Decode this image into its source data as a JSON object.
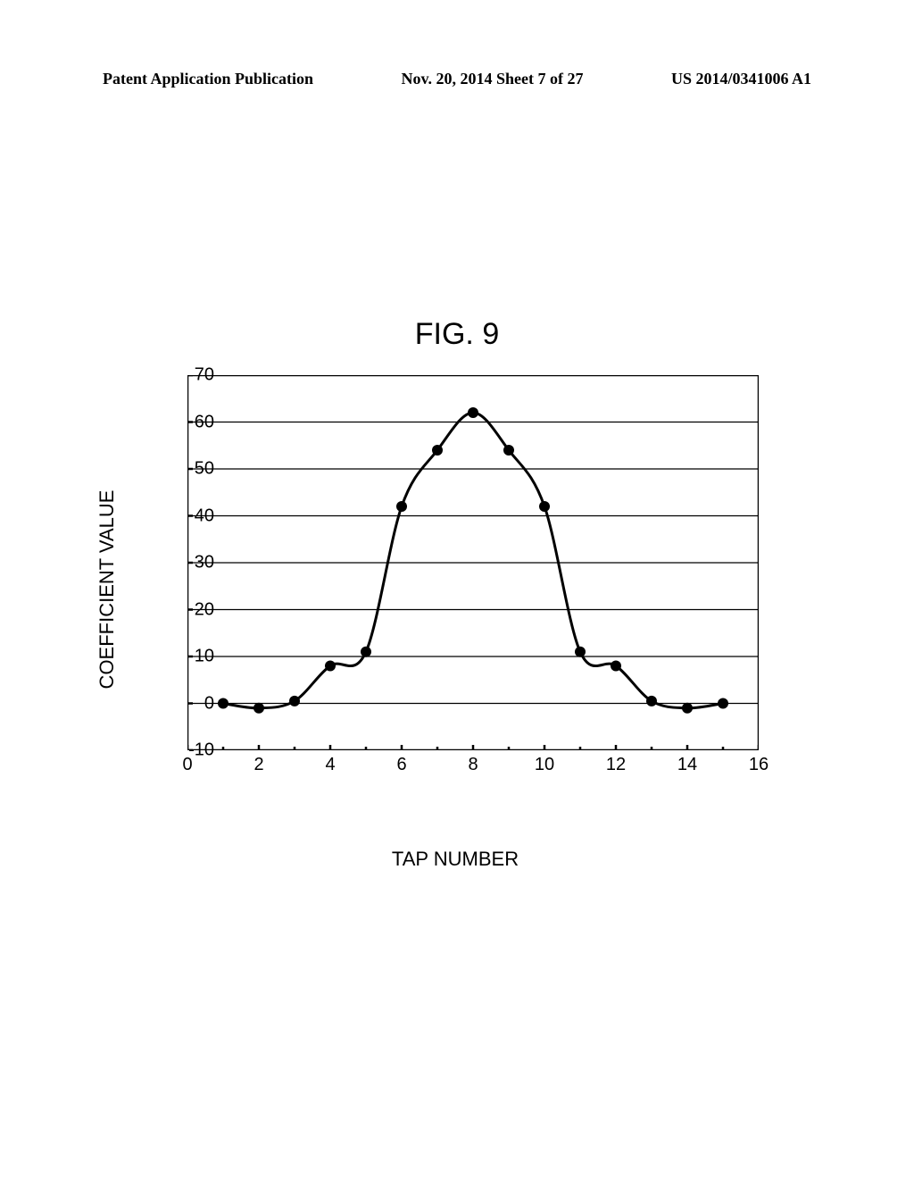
{
  "header": {
    "left": "Patent Application Publication",
    "center": "Nov. 20, 2014  Sheet 7 of 27",
    "right": "US 2014/0341006 A1"
  },
  "figure": {
    "title": "FIG. 9",
    "ylabel": "COEFFICIENT VALUE",
    "xlabel": "TAP NUMBER",
    "chart": {
      "type": "line",
      "xlim": [
        0,
        16
      ],
      "ylim": [
        -10,
        70
      ],
      "xticks": [
        0,
        2,
        4,
        6,
        8,
        10,
        12,
        14,
        16
      ],
      "yticks": [
        -10,
        0,
        10,
        20,
        30,
        40,
        50,
        60,
        70
      ],
      "grid_y": true,
      "grid_color": "#000000",
      "background_color": "#ffffff",
      "axis_color": "#000000",
      "axis_width": 2.5,
      "grid_width": 1.2,
      "line_color": "#000000",
      "line_width": 3,
      "marker_color": "#000000",
      "marker_radius": 6,
      "tick_len": 6,
      "minor_tick_len": 4,
      "points": [
        {
          "x": 1,
          "y": 0
        },
        {
          "x": 2,
          "y": -1
        },
        {
          "x": 3,
          "y": 0.5
        },
        {
          "x": 4,
          "y": 8
        },
        {
          "x": 5,
          "y": 11
        },
        {
          "x": 6,
          "y": 42
        },
        {
          "x": 7,
          "y": 54
        },
        {
          "x": 8,
          "y": 62
        },
        {
          "x": 9,
          "y": 54
        },
        {
          "x": 10,
          "y": 42
        },
        {
          "x": 11,
          "y": 11
        },
        {
          "x": 12,
          "y": 8
        },
        {
          "x": 13,
          "y": 0.5
        },
        {
          "x": 14,
          "y": -1
        },
        {
          "x": 15,
          "y": 0
        }
      ]
    }
  }
}
